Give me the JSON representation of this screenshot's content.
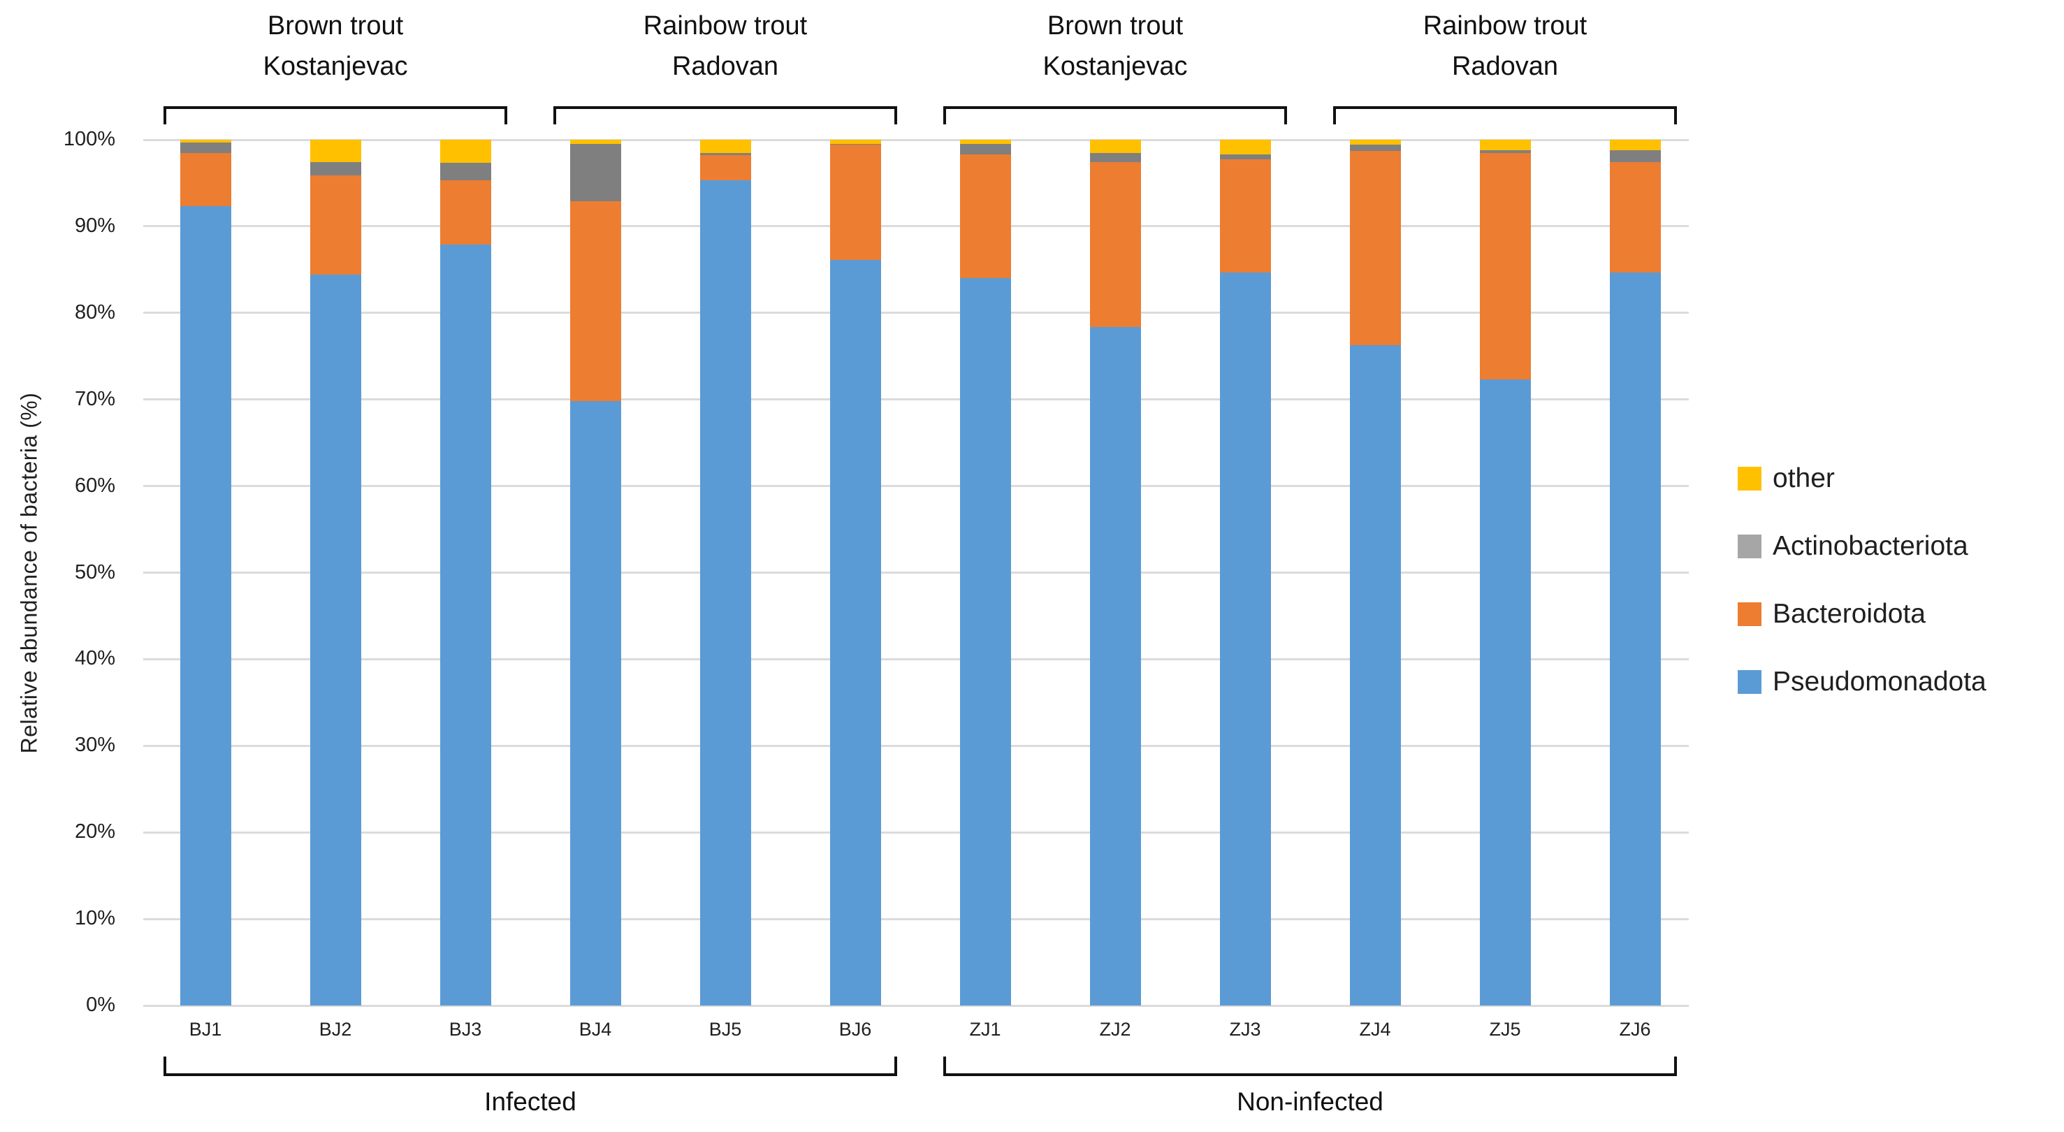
{
  "chart_data": {
    "type": "bar",
    "stacked": true,
    "ylabel": "Relative abundance of bacteria (%)",
    "ylim": [
      0,
      100
    ],
    "grid": true,
    "ytick_labels": [
      "0%",
      "10%",
      "20%",
      "30%",
      "40%",
      "50%",
      "60%",
      "70%",
      "80%",
      "90%",
      "100%"
    ],
    "categories": [
      "BJ1",
      "BJ2",
      "BJ3",
      "BJ4",
      "BJ5",
      "BJ6",
      "ZJ1",
      "ZJ2",
      "ZJ3",
      "ZJ4",
      "ZJ5",
      "ZJ6"
    ],
    "series": [
      {
        "name": "Pseudomonadota",
        "color": "#5B9BD5",
        "values": [
          92.3,
          84.4,
          87.9,
          69.8,
          95.3,
          86.1,
          84.0,
          78.4,
          84.7,
          76.3,
          72.3,
          84.7
        ]
      },
      {
        "name": "Bacteroidota",
        "color": "#ED7D31",
        "values": [
          6.2,
          11.5,
          7.4,
          23.1,
          2.9,
          13.3,
          14.3,
          19.0,
          13.0,
          22.4,
          26.2,
          12.7
        ]
      },
      {
        "name": "Actinobacteriota",
        "color": "#7F7F7F",
        "values": [
          1.2,
          1.5,
          2.0,
          6.6,
          0.3,
          0.1,
          1.2,
          1.1,
          0.6,
          0.7,
          0.3,
          1.4
        ]
      },
      {
        "name": "other",
        "color": "#FFC000",
        "values": [
          0.3,
          2.6,
          2.7,
          0.5,
          1.5,
          0.5,
          0.5,
          1.5,
          1.7,
          0.6,
          1.2,
          1.2
        ]
      }
    ],
    "legend": {
      "position": "right",
      "items": [
        {
          "label": "other",
          "color": "#FFC000"
        },
        {
          "label": "Actinobacteriota",
          "color": "#A6A6A6"
        },
        {
          "label": "Bacteroidota",
          "color": "#ED7D31"
        },
        {
          "label": "Pseudomonadota",
          "color": "#5B9BD5"
        }
      ]
    },
    "top_groups": [
      {
        "line1": "Brown trout",
        "line2": "Kostanjevac",
        "from": "BJ1",
        "to": "BJ3"
      },
      {
        "line1": "Rainbow trout",
        "line2": "Radovan",
        "from": "BJ4",
        "to": "BJ6"
      },
      {
        "line1": "Brown trout",
        "line2": "Kostanjevac",
        "from": "ZJ1",
        "to": "ZJ3"
      },
      {
        "line1": "Rainbow trout",
        "line2": "Radovan",
        "from": "ZJ4",
        "to": "ZJ6"
      }
    ],
    "bottom_groups": [
      {
        "label": "Infected",
        "from": "BJ1",
        "to": "BJ6"
      },
      {
        "label": "Non-infected",
        "from": "ZJ1",
        "to": "ZJ6"
      }
    ],
    "colors": {
      "gridline": "#DBDBDB",
      "bracket": "#111111",
      "text": "#1F1F1F"
    }
  }
}
